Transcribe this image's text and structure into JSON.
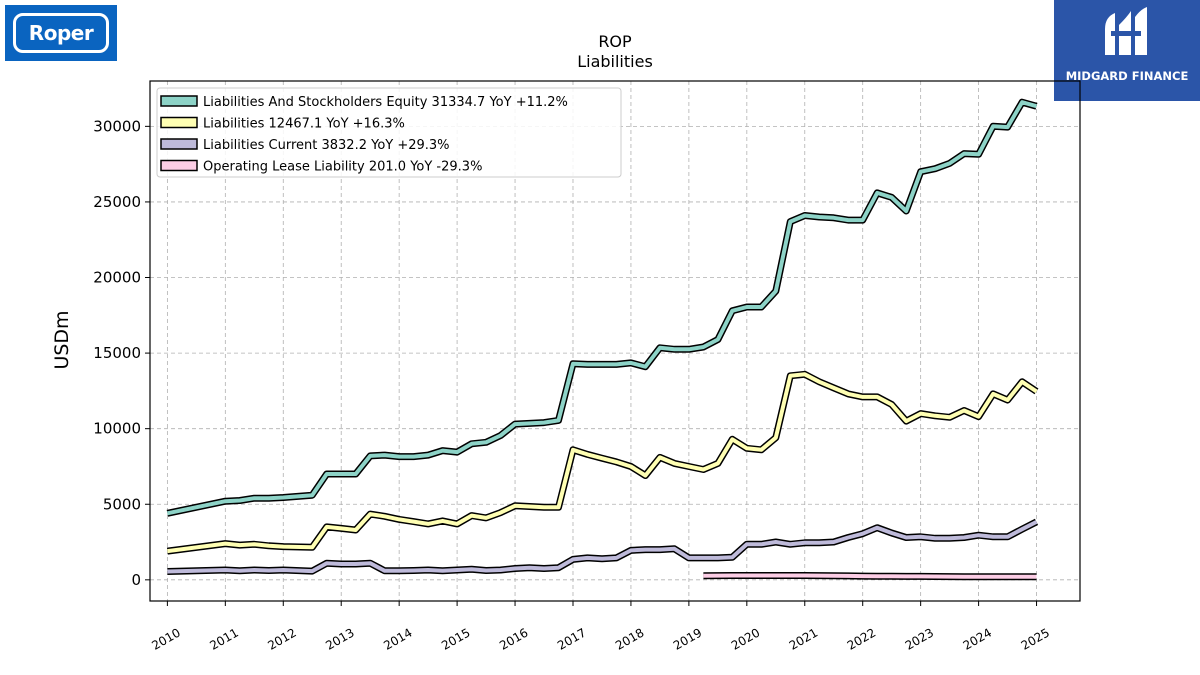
{
  "logos": {
    "left": {
      "text": "Roper",
      "bg": "#0a64c0"
    },
    "right": {
      "text": "MIDGARD FINANCE",
      "bg": "#2b55a8"
    }
  },
  "chart_data": {
    "type": "line",
    "title": "ROP",
    "subtitle": "Liabilities",
    "xlabel": "",
    "ylabel": "USDm",
    "xlim": [
      2009.7,
      2025.75
    ],
    "ylim": [
      -1400,
      33000
    ],
    "grid": true,
    "legend_position": "top-left",
    "x_ticks": [
      2010,
      2011,
      2012,
      2013,
      2014,
      2015,
      2016,
      2017,
      2018,
      2019,
      2020,
      2021,
      2022,
      2023,
      2024,
      2025
    ],
    "x_tick_labels": [
      "2010",
      "2011",
      "2012",
      "2013",
      "2014",
      "2015",
      "2016",
      "2017",
      "2018",
      "2019",
      "2020",
      "2021",
      "2022",
      "2023",
      "2024",
      "2025"
    ],
    "y_ticks": [
      0,
      5000,
      10000,
      15000,
      20000,
      25000,
      30000
    ],
    "y_tick_labels": [
      "0",
      "5000",
      "10000",
      "15000",
      "20000",
      "25000",
      "30000"
    ],
    "series": [
      {
        "name": "Liabilities And Stockholders Equity",
        "legend_label": "Liabilities And Stockholders Equity  31334.7 YoY +11.2%",
        "color": "#8dd3c7",
        "x": [
          2010.0,
          2011.0,
          2011.25,
          2011.5,
          2011.75,
          2012.0,
          2012.5,
          2012.75,
          2013.0,
          2013.25,
          2013.5,
          2013.75,
          2014.0,
          2014.25,
          2014.5,
          2014.75,
          2015.0,
          2015.25,
          2015.5,
          2015.75,
          2016.0,
          2016.25,
          2016.5,
          2016.75,
          2017.0,
          2017.25,
          2017.5,
          2017.75,
          2018.0,
          2018.25,
          2018.5,
          2018.75,
          2019.0,
          2019.25,
          2019.5,
          2019.75,
          2020.0,
          2020.25,
          2020.5,
          2020.75,
          2021.0,
          2021.25,
          2021.5,
          2021.75,
          2022.0,
          2022.25,
          2022.5,
          2022.75,
          2023.0,
          2023.25,
          2023.5,
          2023.75,
          2024.0,
          2024.25,
          2024.5,
          2024.75,
          2025.0
        ],
        "values": [
          4400,
          5200,
          5250,
          5400,
          5400,
          5450,
          5600,
          7000,
          7000,
          7000,
          8200,
          8250,
          8150,
          8150,
          8250,
          8550,
          8450,
          9000,
          9100,
          9550,
          10300,
          10350,
          10400,
          10550,
          14300,
          14250,
          14250,
          14250,
          14350,
          14100,
          15350,
          15250,
          15250,
          15400,
          15900,
          17800,
          18050,
          18050,
          19100,
          23700,
          24100,
          24000,
          23950,
          23800,
          23800,
          25600,
          25300,
          24400,
          27000,
          27200,
          27550,
          28200,
          28150,
          30000,
          29950,
          31600,
          31334.7
        ]
      },
      {
        "name": "Liabilities",
        "legend_label": "Liabilities  12467.1 YoY +16.3%",
        "color": "#ffffb3",
        "x": [
          2010.0,
          2011.0,
          2011.25,
          2011.5,
          2011.75,
          2012.0,
          2012.5,
          2012.75,
          2013.0,
          2013.25,
          2013.5,
          2013.75,
          2014.0,
          2014.25,
          2014.5,
          2014.75,
          2015.0,
          2015.25,
          2015.5,
          2015.75,
          2016.0,
          2016.25,
          2016.5,
          2016.75,
          2017.0,
          2017.25,
          2017.5,
          2017.75,
          2018.0,
          2018.25,
          2018.5,
          2018.75,
          2019.0,
          2019.25,
          2019.5,
          2019.75,
          2020.0,
          2020.25,
          2020.5,
          2020.75,
          2021.0,
          2021.25,
          2021.5,
          2021.75,
          2022.0,
          2022.25,
          2022.5,
          2022.75,
          2023.0,
          2023.25,
          2023.5,
          2023.75,
          2024.0,
          2024.25,
          2024.5,
          2024.75,
          2025.0
        ],
        "values": [
          1900,
          2400,
          2300,
          2350,
          2250,
          2200,
          2150,
          3500,
          3400,
          3300,
          4350,
          4200,
          4000,
          3850,
          3700,
          3900,
          3700,
          4250,
          4100,
          4450,
          4900,
          4850,
          4800,
          4800,
          8600,
          8300,
          8050,
          7800,
          7500,
          6900,
          8100,
          7700,
          7500,
          7300,
          7700,
          9300,
          8700,
          8600,
          9400,
          13500,
          13600,
          13100,
          12700,
          12300,
          12100,
          12100,
          11600,
          10500,
          11000,
          10850,
          10750,
          11200,
          10800,
          12300,
          11900,
          13100,
          12467.1
        ]
      },
      {
        "name": "Liabilities Current",
        "legend_label": "Liabilities Current  3832.2 YoY +29.3%",
        "color": "#bebada",
        "x": [
          2010.0,
          2011.0,
          2011.25,
          2011.5,
          2011.75,
          2012.0,
          2012.5,
          2012.75,
          2013.0,
          2013.25,
          2013.5,
          2013.75,
          2014.0,
          2014.25,
          2014.5,
          2014.75,
          2015.0,
          2015.25,
          2015.5,
          2015.75,
          2016.0,
          2016.25,
          2016.5,
          2016.75,
          2017.0,
          2017.25,
          2017.5,
          2017.75,
          2018.0,
          2018.25,
          2018.5,
          2018.75,
          2019.0,
          2019.25,
          2019.5,
          2019.75,
          2020.0,
          2020.25,
          2020.5,
          2020.75,
          2021.0,
          2021.25,
          2021.5,
          2021.75,
          2022.0,
          2022.25,
          2022.5,
          2022.75,
          2023.0,
          2023.25,
          2023.5,
          2023.75,
          2024.0,
          2024.25,
          2024.5,
          2024.75,
          2025.0
        ],
        "values": [
          550,
          650,
          600,
          650,
          620,
          650,
          580,
          1100,
          1050,
          1050,
          1100,
          600,
          600,
          620,
          650,
          600,
          650,
          700,
          620,
          650,
          750,
          800,
          750,
          800,
          1350,
          1450,
          1400,
          1450,
          1950,
          2000,
          2000,
          2050,
          1450,
          1450,
          1450,
          1500,
          2350,
          2350,
          2500,
          2350,
          2450,
          2450,
          2500,
          2800,
          3050,
          3450,
          3100,
          2800,
          2850,
          2750,
          2750,
          2800,
          2950,
          2850,
          2850,
          3350,
          3832.2
        ]
      },
      {
        "name": "Operating Lease Liability",
        "legend_label": "Operating Lease Liability  201.0 YoY -29.3%",
        "color": "#fccde5",
        "x": [
          2019.25,
          2019.5,
          2019.75,
          2020.0,
          2020.25,
          2020.5,
          2020.75,
          2021.0,
          2021.25,
          2021.5,
          2021.75,
          2022.0,
          2022.25,
          2022.5,
          2022.75,
          2023.0,
          2023.25,
          2023.5,
          2023.75,
          2024.0,
          2024.25,
          2024.5,
          2024.75,
          2025.0
        ],
        "values": [
          270,
          280,
          285,
          290,
          290,
          290,
          290,
          285,
          280,
          270,
          260,
          250,
          240,
          235,
          230,
          225,
          220,
          215,
          210,
          205,
          205,
          203,
          202,
          201.0
        ]
      }
    ]
  }
}
